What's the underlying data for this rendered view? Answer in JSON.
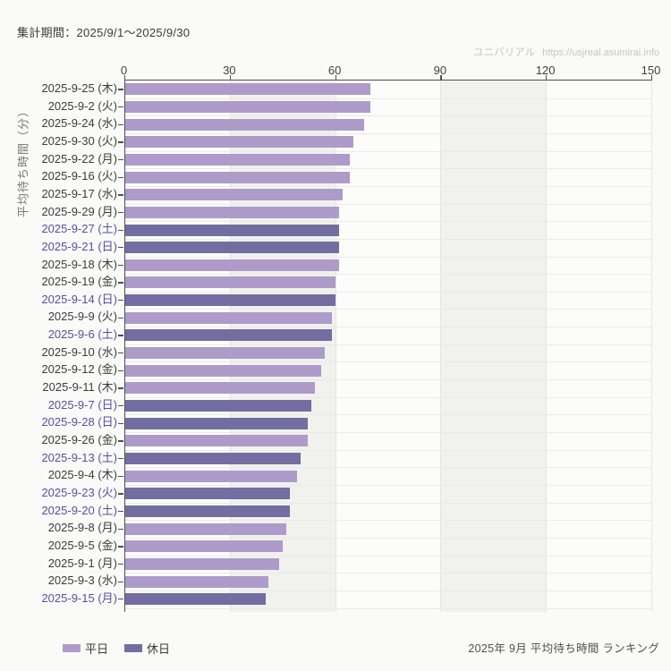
{
  "header": {
    "period_label": "集計期間：2025/9/1～2025/9/30"
  },
  "watermark": {
    "brand": "ユニバリアル",
    "url": "https://usjreal.asumirai.info"
  },
  "legend": {
    "weekday_label": "平日",
    "holiday_label": "休日"
  },
  "footer": {
    "caption": "2025年 9月 平均待ち時間 ランキング"
  },
  "colors": {
    "bar_weekday": "#ae9bc9",
    "bar_holiday": "#746da2",
    "label_weekday": "#3c3c3c",
    "label_holiday": "#564fa4",
    "axis": "#4f4f4f",
    "grid_line_v": "#e4e4e1",
    "grid_line_h": "#eaeae7",
    "band_shade": "#f1f1ee",
    "band_light": "#fcfdfa"
  },
  "chart_data": {
    "type": "bar",
    "orientation": "horizontal",
    "title": "",
    "xlabel": "",
    "ylabel": "平均待ち時間（分）",
    "xlim": [
      0,
      150
    ],
    "x_ticks": [
      0,
      30,
      60,
      90,
      120,
      150
    ],
    "grid": "vertical alternating bands + row gridlines",
    "legend_position": "bottom-left",
    "legend_entries": [
      "平日",
      "休日"
    ],
    "categories": [
      "2025-9-25 (木)",
      "2025-9-2 (火)",
      "2025-9-24 (水)",
      "2025-9-30 (火)",
      "2025-9-22 (月)",
      "2025-9-16 (火)",
      "2025-9-17 (水)",
      "2025-9-29 (月)",
      "2025-9-27 (土)",
      "2025-9-21 (日)",
      "2025-9-18 (木)",
      "2025-9-19 (金)",
      "2025-9-14 (日)",
      "2025-9-9 (火)",
      "2025-9-6 (土)",
      "2025-9-10 (水)",
      "2025-9-12 (金)",
      "2025-9-11 (木)",
      "2025-9-7 (日)",
      "2025-9-28 (日)",
      "2025-9-26 (金)",
      "2025-9-13 (土)",
      "2025-9-4 (木)",
      "2025-9-23 (火)",
      "2025-9-20 (土)",
      "2025-9-8 (月)",
      "2025-9-5 (金)",
      "2025-9-1 (月)",
      "2025-9-3 (水)",
      "2025-9-15 (月)"
    ],
    "values": [
      70,
      70,
      68,
      65,
      64,
      64,
      62,
      61,
      61,
      61,
      61,
      60,
      60,
      59,
      59,
      57,
      56,
      54,
      53,
      52,
      52,
      50,
      49,
      47,
      47,
      46,
      45,
      44,
      41,
      40
    ],
    "day_types": [
      "weekday",
      "weekday",
      "weekday",
      "weekday",
      "weekday",
      "weekday",
      "weekday",
      "weekday",
      "holiday",
      "holiday",
      "weekday",
      "weekday",
      "holiday",
      "weekday",
      "holiday",
      "weekday",
      "weekday",
      "weekday",
      "holiday",
      "holiday",
      "weekday",
      "holiday",
      "weekday",
      "holiday",
      "holiday",
      "weekday",
      "weekday",
      "weekday",
      "weekday",
      "holiday"
    ]
  }
}
